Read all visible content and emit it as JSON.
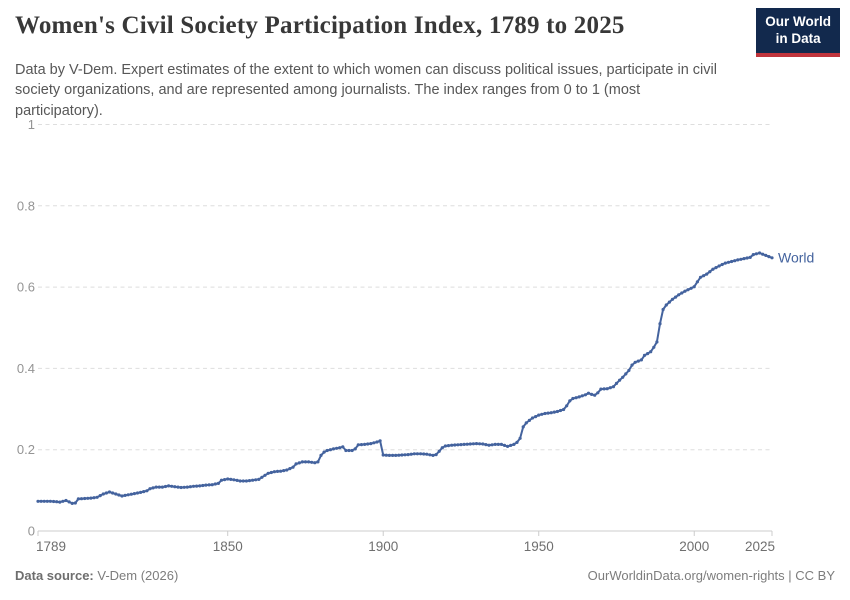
{
  "header": {
    "title": "Women's Civil Society Participation Index, 1789 to 2025",
    "subtitle": "Data by V-Dem. Expert estimates of the extent to which women can discuss political issues, participate in civil society organizations, and are represented among journalists. The index ranges from 0 to 1 (most participatory).",
    "logo": {
      "line1": "Our World",
      "line2": "in Data"
    }
  },
  "footer": {
    "source_label": "Data source:",
    "source_value": " V-Dem (2026)",
    "link": "OurWorldinData.org/women-rights | CC BY"
  },
  "colors": {
    "line": "#44639e",
    "grid": "#dedede",
    "axis": "#cccccc",
    "y_tick_text": "#949494",
    "x_tick_text": "#6f6f6f",
    "logo_bg": "#12294d",
    "logo_bar": "#c0343c"
  },
  "chart_data": {
    "type": "line",
    "title": "Women's Civil Society Participation Index, 1789 to 2025",
    "xlabel": "",
    "ylabel": "",
    "xlim": [
      1789,
      2025
    ],
    "ylim": [
      0,
      1
    ],
    "grid": "horizontal-dashed",
    "legend_position": "end-of-line",
    "x_ticks": [
      1789,
      1850,
      1900,
      1950,
      2000,
      2025
    ],
    "y_ticks": [
      {
        "v": 0,
        "label": "0"
      },
      {
        "v": 0.2,
        "label": "0.2"
      },
      {
        "v": 0.4,
        "label": "0.4"
      },
      {
        "v": 0.6,
        "label": "0.6"
      },
      {
        "v": 0.8,
        "label": "0.8"
      },
      {
        "v": 1,
        "label": "1"
      }
    ],
    "series": [
      {
        "name": "World",
        "end_label": "World",
        "color": "#44639e",
        "points": [
          [
            1789,
            0.073
          ],
          [
            1791,
            0.073
          ],
          [
            1793,
            0.073
          ],
          [
            1795,
            0.072
          ],
          [
            1796,
            0.071
          ],
          [
            1798,
            0.075
          ],
          [
            1800,
            0.068
          ],
          [
            1801,
            0.069
          ],
          [
            1802,
            0.079
          ],
          [
            1804,
            0.08
          ],
          [
            1806,
            0.081
          ],
          [
            1808,
            0.083
          ],
          [
            1810,
            0.091
          ],
          [
            1812,
            0.096
          ],
          [
            1814,
            0.091
          ],
          [
            1816,
            0.086
          ],
          [
            1818,
            0.089
          ],
          [
            1820,
            0.092
          ],
          [
            1822,
            0.095
          ],
          [
            1824,
            0.099
          ],
          [
            1825,
            0.104
          ],
          [
            1827,
            0.108
          ],
          [
            1829,
            0.108
          ],
          [
            1831,
            0.111
          ],
          [
            1833,
            0.109
          ],
          [
            1835,
            0.107
          ],
          [
            1837,
            0.108
          ],
          [
            1839,
            0.11
          ],
          [
            1841,
            0.111
          ],
          [
            1843,
            0.113
          ],
          [
            1845,
            0.114
          ],
          [
            1847,
            0.117
          ],
          [
            1848,
            0.125
          ],
          [
            1850,
            0.128
          ],
          [
            1852,
            0.126
          ],
          [
            1854,
            0.123
          ],
          [
            1856,
            0.123
          ],
          [
            1858,
            0.125
          ],
          [
            1860,
            0.127
          ],
          [
            1861,
            0.132
          ],
          [
            1863,
            0.142
          ],
          [
            1865,
            0.146
          ],
          [
            1867,
            0.147
          ],
          [
            1869,
            0.15
          ],
          [
            1871,
            0.157
          ],
          [
            1872,
            0.165
          ],
          [
            1874,
            0.17
          ],
          [
            1876,
            0.17
          ],
          [
            1878,
            0.168
          ],
          [
            1879,
            0.17
          ],
          [
            1880,
            0.186
          ],
          [
            1881,
            0.194
          ],
          [
            1882,
            0.198
          ],
          [
            1884,
            0.202
          ],
          [
            1886,
            0.205
          ],
          [
            1887,
            0.207
          ],
          [
            1888,
            0.198
          ],
          [
            1890,
            0.198
          ],
          [
            1891,
            0.202
          ],
          [
            1892,
            0.212
          ],
          [
            1894,
            0.213
          ],
          [
            1896,
            0.215
          ],
          [
            1898,
            0.219
          ],
          [
            1899,
            0.222
          ],
          [
            1900,
            0.187
          ],
          [
            1902,
            0.186
          ],
          [
            1904,
            0.186
          ],
          [
            1906,
            0.187
          ],
          [
            1908,
            0.188
          ],
          [
            1910,
            0.19
          ],
          [
            1912,
            0.19
          ],
          [
            1914,
            0.189
          ],
          [
            1916,
            0.186
          ],
          [
            1917,
            0.188
          ],
          [
            1918,
            0.196
          ],
          [
            1919,
            0.205
          ],
          [
            1920,
            0.209
          ],
          [
            1922,
            0.211
          ],
          [
            1924,
            0.212
          ],
          [
            1926,
            0.213
          ],
          [
            1928,
            0.214
          ],
          [
            1930,
            0.215
          ],
          [
            1932,
            0.214
          ],
          [
            1934,
            0.211
          ],
          [
            1936,
            0.213
          ],
          [
            1938,
            0.213
          ],
          [
            1940,
            0.208
          ],
          [
            1942,
            0.213
          ],
          [
            1943,
            0.218
          ],
          [
            1944,
            0.228
          ],
          [
            1945,
            0.256
          ],
          [
            1946,
            0.266
          ],
          [
            1947,
            0.272
          ],
          [
            1948,
            0.278
          ],
          [
            1950,
            0.285
          ],
          [
            1952,
            0.289
          ],
          [
            1954,
            0.291
          ],
          [
            1956,
            0.294
          ],
          [
            1958,
            0.299
          ],
          [
            1959,
            0.308
          ],
          [
            1960,
            0.32
          ],
          [
            1961,
            0.326
          ],
          [
            1963,
            0.33
          ],
          [
            1965,
            0.335
          ],
          [
            1966,
            0.339
          ],
          [
            1967,
            0.336
          ],
          [
            1968,
            0.334
          ],
          [
            1969,
            0.34
          ],
          [
            1970,
            0.349
          ],
          [
            1972,
            0.35
          ],
          [
            1974,
            0.355
          ],
          [
            1975,
            0.363
          ],
          [
            1976,
            0.371
          ],
          [
            1977,
            0.378
          ],
          [
            1979,
            0.395
          ],
          [
            1980,
            0.408
          ],
          [
            1981,
            0.415
          ],
          [
            1983,
            0.421
          ],
          [
            1984,
            0.432
          ],
          [
            1986,
            0.441
          ],
          [
            1987,
            0.452
          ],
          [
            1988,
            0.465
          ],
          [
            1989,
            0.51
          ],
          [
            1990,
            0.545
          ],
          [
            1991,
            0.556
          ],
          [
            1993,
            0.57
          ],
          [
            1995,
            0.581
          ],
          [
            1997,
            0.59
          ],
          [
            1999,
            0.597
          ],
          [
            2000,
            0.601
          ],
          [
            2001,
            0.613
          ],
          [
            2002,
            0.624
          ],
          [
            2004,
            0.632
          ],
          [
            2006,
            0.644
          ],
          [
            2008,
            0.652
          ],
          [
            2010,
            0.659
          ],
          [
            2012,
            0.663
          ],
          [
            2014,
            0.667
          ],
          [
            2016,
            0.67
          ],
          [
            2018,
            0.673
          ],
          [
            2019,
            0.68
          ],
          [
            2021,
            0.684
          ],
          [
            2023,
            0.678
          ],
          [
            2025,
            0.672
          ]
        ]
      }
    ]
  }
}
